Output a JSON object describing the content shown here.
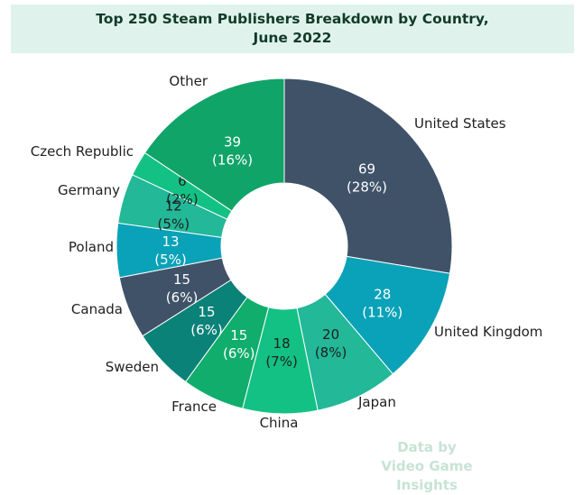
{
  "chart_data": {
    "type": "pie",
    "title_lines": [
      "Top 250 Steam Publishers Breakdown by Country,",
      "June 2022"
    ],
    "slices": [
      {
        "label": "United States",
        "value": 69,
        "percent": "28%",
        "color": "#3f5268",
        "text_color": "#ffffff"
      },
      {
        "label": "United Kingdom",
        "value": 28,
        "percent": "11%",
        "color": "#0aa2b8",
        "text_color": "#ffffff"
      },
      {
        "label": "Japan",
        "value": 20,
        "percent": "8%",
        "color": "#22b898",
        "text_color": "#1f1f1f"
      },
      {
        "label": "China",
        "value": 18,
        "percent": "7%",
        "color": "#13c184",
        "text_color": "#1f1f1f"
      },
      {
        "label": "France",
        "value": 15,
        "percent": "6%",
        "color": "#11ad6c",
        "text_color": "#ffffff"
      },
      {
        "label": "Sweden",
        "value": 15,
        "percent": "6%",
        "color": "#0b8278",
        "text_color": "#ffffff"
      },
      {
        "label": "Canada",
        "value": 15,
        "percent": "6%",
        "color": "#3f5268",
        "text_color": "#ffffff"
      },
      {
        "label": "Poland",
        "value": 13,
        "percent": "5%",
        "color": "#0aa2b8",
        "text_color": "#ffffff"
      },
      {
        "label": "Germany",
        "value": 12,
        "percent": "5%",
        "color": "#22b898",
        "text_color": "#1f1f1f"
      },
      {
        "label": "Czech Republic",
        "value": 6,
        "percent": "2%",
        "color": "#13c184",
        "text_color": "#1f1f1f"
      },
      {
        "label": "Other",
        "value": 39,
        "percent": "16%",
        "color": "#11a468",
        "text_color": "#ffffff"
      }
    ]
  },
  "watermark": {
    "line1": "Data by",
    "line2": "Video Game Insights"
  }
}
